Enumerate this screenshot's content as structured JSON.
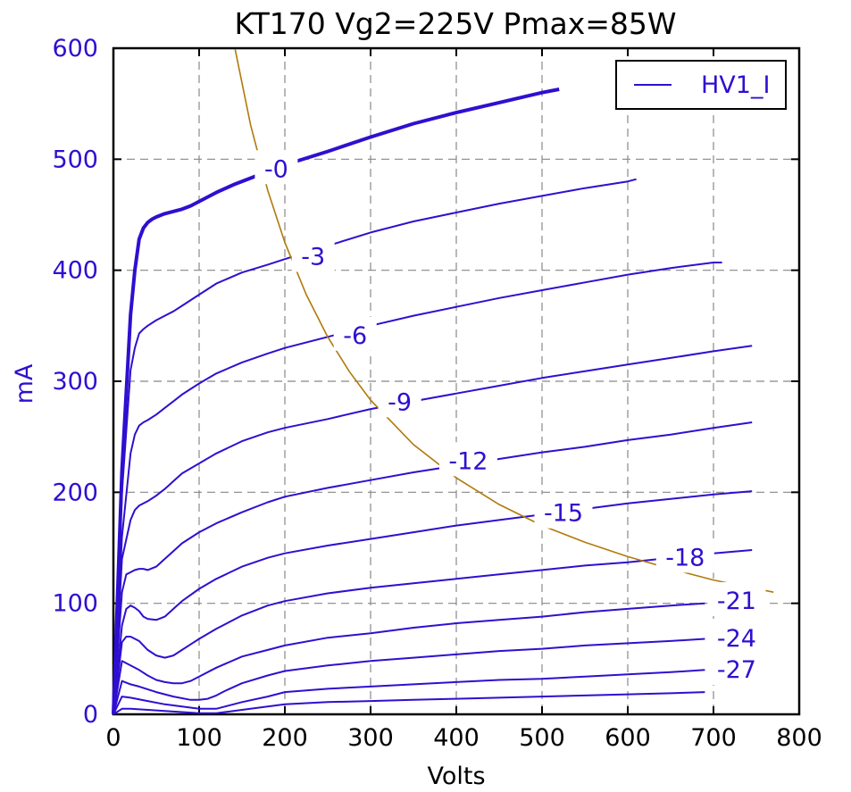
{
  "chart_data": {
    "type": "line",
    "title": "KT170 Vg2=225V Pmax=85W",
    "xlabel": "Volts",
    "ylabel": "mA",
    "xlim": [
      0,
      800
    ],
    "ylim": [
      0,
      600
    ],
    "xticks": [
      "0",
      "100",
      "200",
      "300",
      "400",
      "500",
      "600",
      "700",
      "800"
    ],
    "yticks": [
      "0",
      "100",
      "200",
      "300",
      "400",
      "500",
      "600"
    ],
    "grid": true,
    "legend": {
      "position": "top-right",
      "entries": [
        "HV1_I"
      ]
    },
    "colors": {
      "curves": "#2f0fd0",
      "pmax": "#b07a0a",
      "axis_text": "#2f0fd0",
      "title": "#000000"
    },
    "series": [
      {
        "name": "HV1_I",
        "label": "-0",
        "x": [
          0,
          10,
          20,
          25,
          30,
          35,
          40,
          45,
          50,
          60,
          70,
          80,
          90,
          100,
          120,
          140,
          160,
          180,
          200,
          250,
          300,
          350,
          400,
          450,
          500,
          520
        ],
        "y": [
          0,
          220,
          360,
          400,
          428,
          438,
          443,
          446,
          448,
          451,
          453,
          455,
          458,
          462,
          470,
          477,
          483,
          489,
          495,
          507,
          520,
          532,
          542,
          551,
          560,
          563
        ]
      },
      {
        "label": "-3",
        "x": [
          0,
          10,
          20,
          25,
          30,
          35,
          40,
          50,
          60,
          70,
          80,
          100,
          120,
          150,
          180,
          200,
          250,
          300,
          350,
          400,
          450,
          500,
          550,
          600,
          610
        ],
        "y": [
          0,
          200,
          310,
          330,
          343,
          347,
          350,
          355,
          359,
          363,
          368,
          378,
          388,
          398,
          405,
          410,
          422,
          434,
          444,
          452,
          460,
          467,
          474,
          480,
          482
        ]
      },
      {
        "label": "-6",
        "x": [
          0,
          10,
          20,
          25,
          30,
          35,
          40,
          50,
          60,
          70,
          80,
          100,
          120,
          150,
          180,
          200,
          250,
          300,
          350,
          400,
          450,
          500,
          550,
          600,
          650,
          700,
          710
        ],
        "y": [
          0,
          160,
          235,
          252,
          260,
          263,
          265,
          270,
          276,
          282,
          288,
          298,
          307,
          317,
          325,
          330,
          340,
          350,
          359,
          367,
          375,
          382,
          389,
          396,
          402,
          407,
          407
        ]
      },
      {
        "label": "-9",
        "x": [
          0,
          10,
          20,
          25,
          30,
          40,
          50,
          60,
          70,
          80,
          100,
          120,
          150,
          180,
          200,
          250,
          300,
          350,
          400,
          450,
          500,
          550,
          600,
          650,
          700,
          745
        ],
        "y": [
          0,
          140,
          175,
          184,
          188,
          192,
          197,
          203,
          210,
          217,
          226,
          235,
          246,
          254,
          258,
          266,
          275,
          282,
          289,
          296,
          303,
          309,
          315,
          321,
          327,
          332
        ]
      },
      {
        "label": "-12",
        "x": [
          0,
          10,
          15,
          20,
          25,
          30,
          35,
          40,
          50,
          60,
          70,
          80,
          100,
          120,
          150,
          180,
          200,
          250,
          300,
          350,
          400,
          450,
          500,
          550,
          600,
          650,
          700,
          745
        ],
        "y": [
          0,
          110,
          126,
          128,
          130,
          131,
          131,
          130,
          133,
          140,
          147,
          154,
          164,
          172,
          182,
          191,
          196,
          204,
          211,
          218,
          224,
          230,
          236,
          241,
          247,
          252,
          258,
          263
        ]
      },
      {
        "label": "-15",
        "x": [
          0,
          10,
          15,
          20,
          25,
          30,
          35,
          40,
          50,
          60,
          70,
          80,
          100,
          120,
          150,
          180,
          200,
          250,
          300,
          350,
          400,
          450,
          500,
          550,
          600,
          650,
          700,
          745
        ],
        "y": [
          0,
          80,
          95,
          98,
          96,
          93,
          88,
          86,
          85,
          88,
          95,
          102,
          113,
          122,
          133,
          141,
          145,
          152,
          158,
          164,
          170,
          175,
          180,
          185,
          190,
          194,
          198,
          201
        ]
      },
      {
        "label": "-18",
        "x": [
          0,
          10,
          15,
          20,
          30,
          40,
          50,
          60,
          70,
          80,
          90,
          100,
          120,
          150,
          180,
          200,
          250,
          300,
          350,
          400,
          450,
          500,
          550,
          600,
          650,
          700,
          745
        ],
        "y": [
          0,
          65,
          70,
          70,
          66,
          58,
          53,
          51,
          53,
          58,
          63,
          68,
          77,
          89,
          98,
          102,
          109,
          114,
          118,
          122,
          126,
          130,
          134,
          137,
          141,
          145,
          148
        ]
      },
      {
        "label": "-21",
        "x": [
          0,
          10,
          20,
          30,
          40,
          50,
          60,
          70,
          80,
          90,
          100,
          120,
          150,
          180,
          200,
          250,
          300,
          350,
          400,
          450,
          500,
          550,
          600,
          650,
          690
        ],
        "y": [
          0,
          48,
          44,
          40,
          35,
          31,
          29,
          28,
          28,
          30,
          34,
          42,
          52,
          58,
          62,
          69,
          73,
          78,
          82,
          85,
          88,
          92,
          95,
          98,
          100
        ]
      },
      {
        "label": "-24",
        "x": [
          0,
          10,
          20,
          30,
          50,
          70,
          90,
          100,
          110,
          120,
          130,
          150,
          180,
          200,
          250,
          300,
          350,
          400,
          450,
          500,
          550,
          600,
          650,
          690
        ],
        "y": [
          0,
          30,
          27,
          25,
          20,
          16,
          13,
          13,
          14,
          17,
          21,
          28,
          35,
          39,
          44,
          48,
          51,
          54,
          57,
          59,
          62,
          64,
          66,
          68
        ]
      },
      {
        "label": "-27",
        "x": [
          0,
          10,
          20,
          40,
          60,
          80,
          100,
          110,
          120,
          130,
          150,
          180,
          200,
          250,
          300,
          350,
          400,
          450,
          500,
          550,
          600,
          650,
          690
        ],
        "y": [
          0,
          16,
          15,
          12,
          9,
          7,
          5,
          5,
          5,
          7,
          11,
          16,
          20,
          23,
          25,
          27,
          29,
          31,
          32,
          34,
          36,
          38,
          40
        ]
      },
      {
        "label": "",
        "x": [
          0,
          10,
          20,
          40,
          60,
          80,
          100,
          110,
          120,
          130,
          150,
          180,
          200,
          250,
          300,
          350,
          400,
          450,
          500,
          550,
          600,
          650,
          690
        ],
        "y": [
          0,
          5,
          5,
          4,
          3,
          2,
          1,
          1,
          1,
          2,
          4,
          7,
          9,
          11,
          12,
          13,
          14,
          15,
          16,
          17,
          18,
          19,
          20
        ]
      }
    ],
    "pmax_curve": {
      "x": [
        142,
        160,
        180,
        200,
        225,
        250,
        275,
        300,
        350,
        400,
        450,
        500,
        550,
        600,
        650,
        700,
        770
      ],
      "y": [
        599,
        531,
        472,
        425,
        378,
        340,
        309,
        283,
        243,
        213,
        189,
        170,
        155,
        142,
        131,
        121,
        110
      ]
    },
    "labels": [
      {
        "text": "-0",
        "x": 190,
        "y": 492
      },
      {
        "text": "-3",
        "x": 233,
        "y": 413
      },
      {
        "text": "-6",
        "x": 282,
        "y": 342
      },
      {
        "text": "-9",
        "x": 334,
        "y": 282
      },
      {
        "text": "-12",
        "x": 414,
        "y": 229
      },
      {
        "text": "-15",
        "x": 525,
        "y": 182
      },
      {
        "text": "-18",
        "x": 667,
        "y": 142
      },
      {
        "text": "-21",
        "x": 727,
        "y": 103
      },
      {
        "text": "-24",
        "x": 727,
        "y": 69
      },
      {
        "text": "-27",
        "x": 727,
        "y": 41
      }
    ]
  }
}
